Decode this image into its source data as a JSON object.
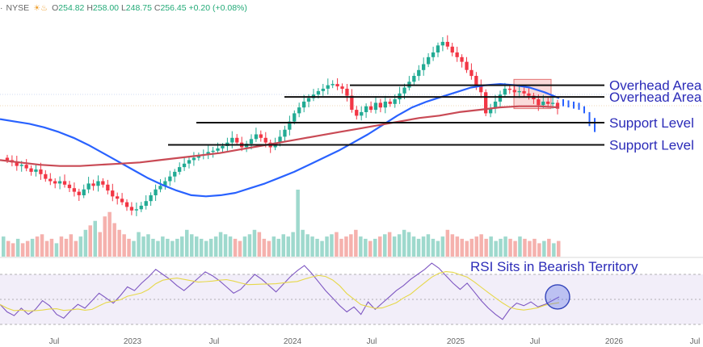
{
  "header": {
    "exchange": "NYSE",
    "open_label": "O",
    "open": "254.82",
    "high_label": "H",
    "high": "258.00",
    "low_label": "L",
    "low": "248.75",
    "close_label": "C",
    "close": "256.45",
    "change": "+0.20 (+0.08%)"
  },
  "chart_data": {
    "type": "candlestick",
    "annotations": {
      "overhead_1": "Overhead Area",
      "overhead_2": "Overhead Area",
      "support_1": "Support Level",
      "support_2": "Support Level",
      "rsi_title": "RSI Sits in Bearish Territory"
    },
    "x_ticks": [
      "Jul",
      "2023",
      "Jul",
      "2024",
      "Jul",
      "2025",
      "Jul",
      "2026",
      "Jul"
    ],
    "price_series_weekly_close": [
      188,
      186,
      183,
      184,
      181,
      178,
      180,
      176,
      172,
      170,
      168,
      170,
      167,
      164,
      161,
      158,
      163,
      168,
      166,
      170,
      167,
      162,
      157,
      155,
      152,
      148,
      145,
      146,
      149,
      153,
      158,
      163,
      166,
      170,
      174,
      178,
      182,
      185,
      188,
      190,
      192,
      193,
      195,
      196,
      198,
      200,
      203,
      207,
      203,
      199,
      202,
      206,
      210,
      207,
      203,
      199,
      203,
      208,
      214,
      221,
      228,
      233,
      238,
      241,
      244,
      247,
      249,
      252,
      253,
      251,
      249,
      243,
      231,
      226,
      229,
      234,
      231,
      237,
      233,
      238,
      236,
      240,
      245,
      250,
      255,
      260,
      265,
      270,
      276,
      280,
      286,
      289,
      285,
      280,
      276,
      272,
      265,
      260,
      252,
      246,
      228,
      232,
      238,
      244,
      249,
      248,
      246,
      247,
      245,
      243,
      240,
      235,
      238,
      236,
      237,
      232
    ],
    "recent_bars_since_high": [
      237,
      236,
      235,
      234,
      231,
      226,
      221
    ],
    "sma_50": [
      223,
      221,
      219,
      216,
      212,
      207,
      201,
      194,
      187,
      180,
      173,
      167,
      162,
      158,
      157,
      158,
      160,
      164,
      168,
      173,
      178,
      184,
      190,
      196,
      203,
      210,
      218,
      226,
      233,
      238,
      242,
      246,
      250,
      252,
      253,
      252,
      250,
      246,
      241
    ],
    "sma_200": [
      188,
      186,
      184,
      183,
      183,
      184,
      185,
      186,
      188,
      190,
      192,
      194,
      197,
      200,
      203,
      206,
      209,
      212,
      215,
      218,
      221,
      224,
      226,
      229,
      231,
      233,
      234,
      234,
      233
    ],
    "levels": {
      "overhead_upper": 252,
      "overhead_lower": 242,
      "support_upper": 220,
      "support_lower": 201
    },
    "rsi": [
      46,
      40,
      37,
      43,
      38,
      42,
      49,
      45,
      38,
      35,
      41,
      46,
      43,
      49,
      55,
      51,
      47,
      53,
      60,
      57,
      63,
      68,
      74,
      70,
      66,
      61,
      57,
      62,
      67,
      72,
      69,
      65,
      60,
      55,
      58,
      64,
      70,
      66,
      61,
      56,
      62,
      68,
      73,
      77,
      71,
      64,
      57,
      51,
      45,
      40,
      44,
      38,
      48,
      42,
      47,
      52,
      57,
      61,
      66,
      70,
      74,
      79,
      75,
      69,
      63,
      58,
      63,
      56,
      49,
      43,
      38,
      34,
      42,
      47,
      45,
      48,
      44,
      46,
      49,
      52
    ],
    "rsi_levels": [
      70,
      50,
      30
    ],
    "volume": [
      9,
      7,
      6,
      8,
      6,
      7,
      8,
      9,
      10,
      7,
      8,
      6,
      9,
      8,
      10,
      7,
      9,
      12,
      14,
      16,
      11,
      18,
      20,
      15,
      12,
      10,
      8,
      7,
      11,
      9,
      10,
      8,
      7,
      9,
      8,
      7,
      8,
      9,
      12,
      10,
      9,
      8,
      7,
      8,
      9,
      11,
      10,
      9,
      8,
      7,
      9,
      10,
      12,
      11,
      8,
      7,
      9,
      8,
      10,
      9,
      11,
      30,
      12,
      10,
      9,
      8,
      7,
      9,
      10,
      11,
      8,
      9,
      10,
      12,
      9,
      8,
      7,
      8,
      9,
      10,
      11,
      9,
      10,
      12,
      11,
      9,
      8,
      9,
      10,
      8,
      7,
      9,
      12,
      10,
      9,
      8,
      7,
      8,
      9,
      10,
      8,
      9,
      7,
      8,
      9,
      8,
      7,
      9,
      8,
      7,
      8,
      6,
      7,
      8,
      6,
      7
    ]
  }
}
